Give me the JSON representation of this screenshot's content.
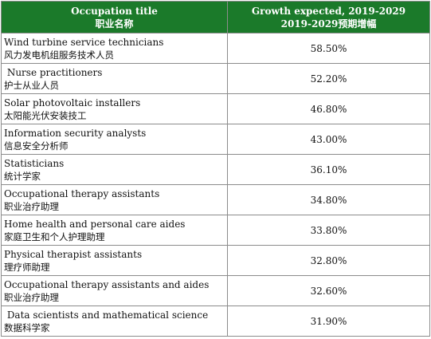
{
  "header": {
    "col1_en": "Occupation title",
    "col1_zh": "职业名称",
    "col2_en": "Growth expected, 2019-2029",
    "col2_zh": "2019-2029预期增幅"
  },
  "rows": [
    {
      "en": "Wind turbine service technicians",
      "zh": "风力发电机组服务技术人员",
      "value": "58.50%"
    },
    {
      "en": " Nurse practitioners",
      "zh": "护士从业人员",
      "value": "52.20%"
    },
    {
      "en": "Solar photovoltaic installers",
      "zh": "太阳能光伏安装技工",
      "value": "46.80%"
    },
    {
      "en": "Information security analysts",
      "zh": "信息安全分析师",
      "value": "43.00%"
    },
    {
      "en": "Statisticians",
      "zh": "统计学家",
      "value": "36.10%"
    },
    {
      "en": "Occupational therapy assistants",
      "zh": "职业治疗助理",
      "value": "34.80%"
    },
    {
      "en": "Home health and personal care aides",
      "zh": "家庭卫生和个人护理助理",
      "value": "33.80%"
    },
    {
      "en": "Physical therapist assistants",
      "zh": "理疗师助理",
      "value": "32.80%"
    },
    {
      "en": "Occupational therapy assistants and aides",
      "zh": "职业治疗助理",
      "value": "32.60%"
    },
    {
      "en": " Data scientists and mathematical science",
      "zh": "数据科学家",
      "value": "31.90%"
    }
  ],
  "colors": {
    "header_bg": "#1b7a2a",
    "header_text": "#ffffff",
    "border": "#8c8c8c"
  }
}
